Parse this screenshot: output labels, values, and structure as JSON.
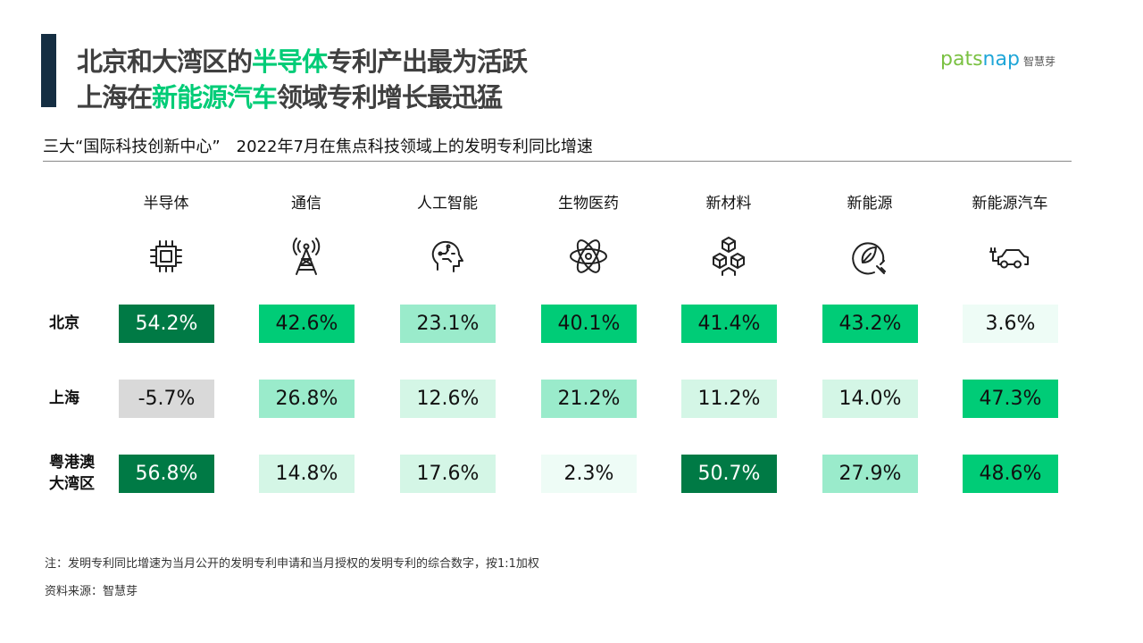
{
  "header": {
    "title_line1": [
      "北京和大湾区的",
      "半导体",
      "专利产出最为活跃"
    ],
    "title_line2": [
      "上海在",
      "新能源汽车",
      "领域专利增长最迅猛"
    ],
    "logo": {
      "part1": "pats",
      "part2": "nap",
      "cn": "智慧芽"
    }
  },
  "subtitle": "三大“国际科技创新中心”　2022年7月在焦点科技领域上的发明专利同比增速",
  "chart_data": {
    "type": "heatmap",
    "title": "三大“国际科技创新中心”　2022年7月在焦点科技领域上的发明专利同比增速",
    "columns": [
      "半导体",
      "通信",
      "人工智能",
      "生物医药",
      "新材料",
      "新能源",
      "新能源汽车"
    ],
    "column_icons": [
      "chip-icon",
      "signal-tower-icon",
      "ai-head-icon",
      "atom-icon",
      "cubes-icon",
      "leaf-plug-icon",
      "electric-car-icon"
    ],
    "rows": [
      {
        "label": "北京",
        "values": [
          54.2,
          42.6,
          23.1,
          40.1,
          41.4,
          43.2,
          3.6
        ],
        "labels": [
          "54.2%",
          "42.6%",
          "23.1%",
          "40.1%",
          "41.4%",
          "43.2%",
          "3.6%"
        ]
      },
      {
        "label": "上海",
        "values": [
          -5.7,
          26.8,
          12.6,
          21.2,
          11.2,
          14.0,
          47.3
        ],
        "labels": [
          "-5.7%",
          "26.8%",
          "12.6%",
          "21.2%",
          "11.2%",
          "14.0%",
          "47.3%"
        ]
      },
      {
        "label": "粤港澳\n大湾区",
        "values": [
          56.8,
          14.8,
          17.6,
          2.3,
          50.7,
          27.9,
          48.6
        ],
        "labels": [
          "56.8%",
          "14.8%",
          "17.6%",
          "2.3%",
          "50.7%",
          "27.9%",
          "48.6%"
        ]
      }
    ],
    "unit": "%",
    "colors": {
      "negative": "#d9d9d9",
      "0-10": "#eefcf6",
      "10-20": "#d4f6e6",
      "20-30": "#9aebcb",
      "40-50": "#00cc77",
      "50+": "#007a45"
    }
  },
  "footer": {
    "note": "注：发明专利同比增速为当月公开的发明专利申请和当月授权的发明专利的综合数字，按1:1加权",
    "source": "资料来源：智慧芽"
  }
}
